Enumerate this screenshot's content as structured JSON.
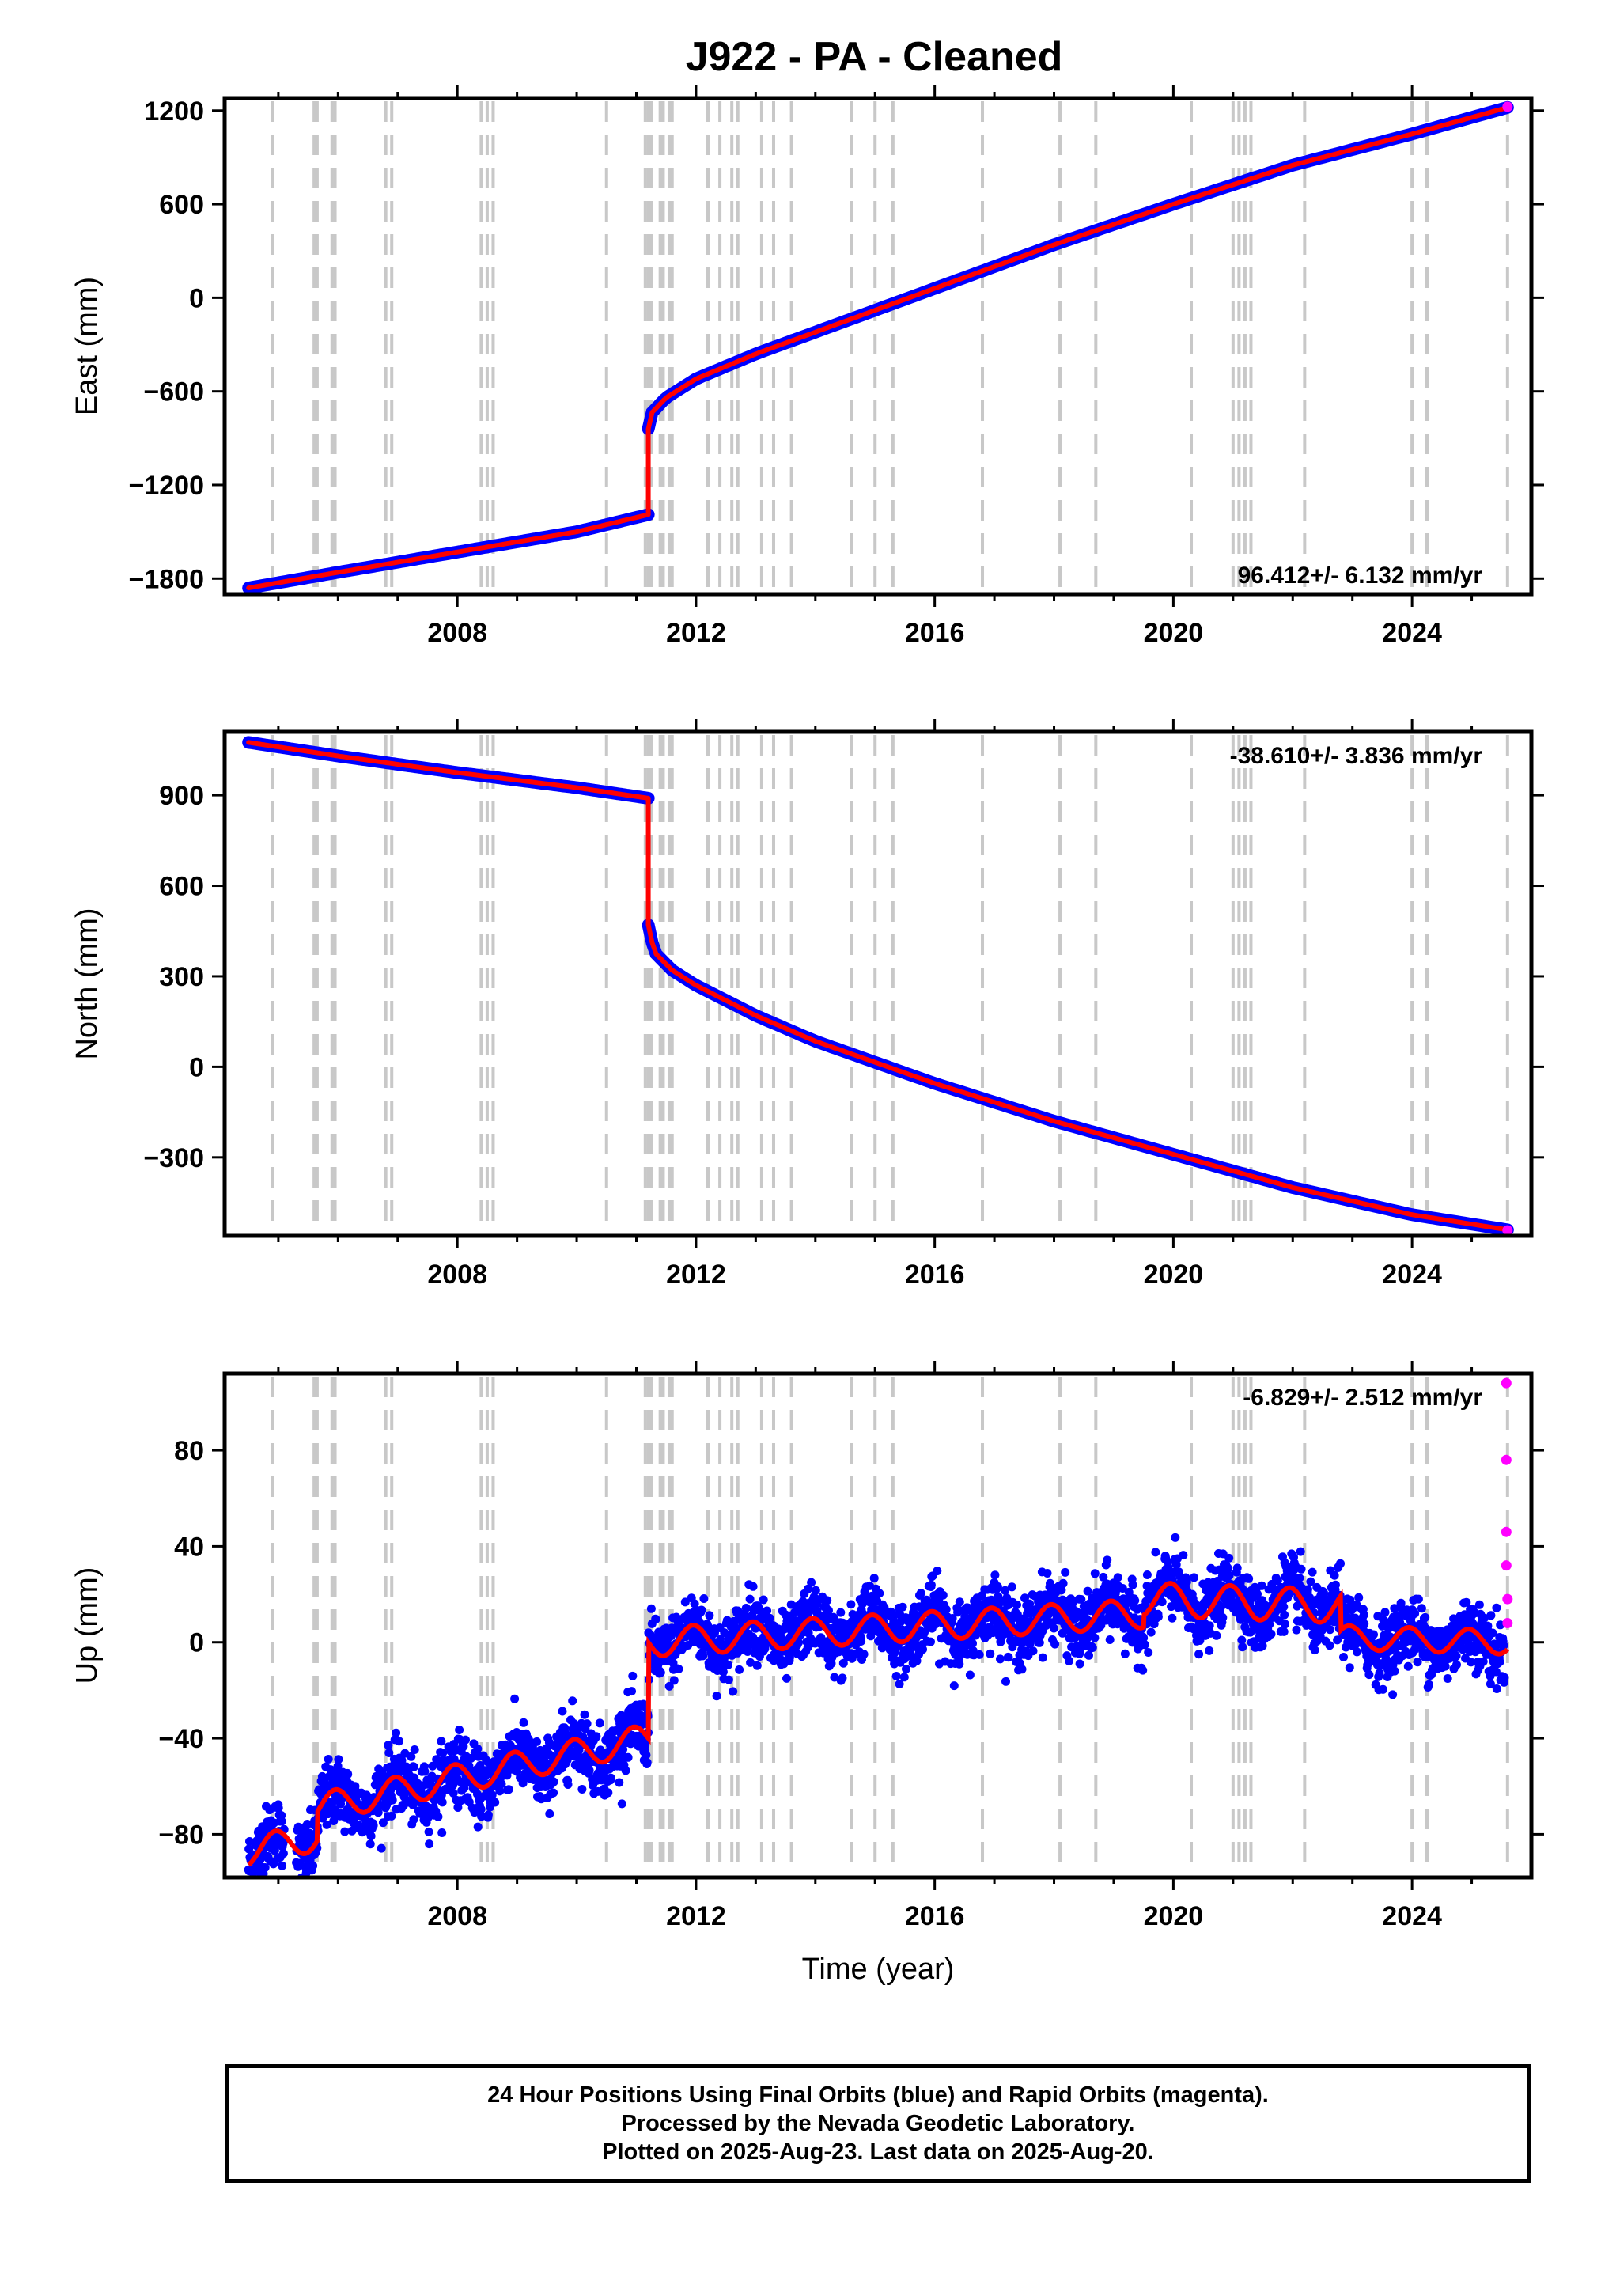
{
  "title": "J922  - PA - Cleaned",
  "footer": {
    "line1": "24 Hour Positions Using Final Orbits (blue) and Rapid Orbits (magenta).",
    "line2": "Processed by the Nevada Geodetic Laboratory.",
    "line3": "Plotted on 2025-Aug-23. Last data on 2025-Aug-20."
  },
  "colors": {
    "final_orbits": "#0000ff",
    "rapid_orbits": "#ff00ff",
    "fit": "#ff0000",
    "events": "#c8c8c8"
  },
  "event_lines": [
    2004.9,
    2005.6,
    2005.65,
    2005.9,
    2005.95,
    2006.8,
    2006.9,
    2008.4,
    2008.5,
    2008.6,
    2010.5,
    2011.15,
    2011.2,
    2011.25,
    2011.4,
    2011.45,
    2011.55,
    2011.6,
    2012.2,
    2012.4,
    2012.6,
    2012.7,
    2013.1,
    2013.3,
    2013.6,
    2014.6,
    2015.0,
    2015.3,
    2016.8,
    2018.1,
    2018.7,
    2020.3,
    2021.0,
    2021.1,
    2021.2,
    2021.3,
    2022.2,
    2024.0,
    2024.25,
    2025.6
  ],
  "chart_data": [
    {
      "type": "scatter",
      "panel": "east",
      "xlabel": "",
      "ylabel": "East (mm)",
      "xlim": [
        2004.1,
        2026.0
      ],
      "ylim": [
        -1900,
        1280
      ],
      "xticks": [
        "2008",
        "2012",
        "2016",
        "2020",
        "2024"
      ],
      "yticks": [
        "1200",
        "600",
        "0",
        "−600",
        "−1200",
        "−1800"
      ],
      "rate": "96.412+/- 6.132 mm/yr",
      "rate_position": "bottom-right",
      "series": [
        {
          "x": [
            2004.5,
            2006.0,
            2008.0,
            2010.0,
            2011.2
          ],
          "y": [
            -1860,
            -1760,
            -1630,
            -1500,
            -1390
          ]
        },
        {
          "x": [
            2011.2,
            2011.25,
            2011.5,
            2012.0,
            2013.0,
            2014.0,
            2016.0,
            2018.0,
            2020.0,
            2022.0,
            2024.0,
            2025.6
          ],
          "y": [
            -840,
            -740,
            -640,
            -520,
            -360,
            -220,
            60,
            340,
            600,
            850,
            1050,
            1220
          ]
        }
      ],
      "rapid": {
        "x": [
          2025.6
        ],
        "y": [
          1225
        ]
      }
    },
    {
      "type": "scatter",
      "panel": "north",
      "xlabel": "",
      "ylabel": "North (mm)",
      "xlim": [
        2004.1,
        2026.0
      ],
      "ylim": [
        -560,
        1110
      ],
      "xticks": [
        "2008",
        "2012",
        "2016",
        "2020",
        "2024"
      ],
      "yticks": [
        "900",
        "600",
        "300",
        "0",
        "−300"
      ],
      "rate": "-38.610+/- 3.836 mm/yr",
      "rate_position": "top-right",
      "series": [
        {
          "x": [
            2004.5,
            2006.0,
            2008.0,
            2010.0,
            2011.2
          ],
          "y": [
            1075,
            1030,
            975,
            925,
            890
          ]
        },
        {
          "x": [
            2011.2,
            2011.3,
            2011.6,
            2012.0,
            2013.0,
            2014.0,
            2016.0,
            2018.0,
            2020.0,
            2022.0,
            2024.0,
            2025.6
          ],
          "y": [
            470,
            380,
            320,
            270,
            170,
            85,
            -55,
            -180,
            -290,
            -400,
            -490,
            -540
          ]
        }
      ],
      "rapid": {
        "x": [
          2025.6
        ],
        "y": [
          -542
        ]
      }
    },
    {
      "type": "scatter",
      "panel": "up",
      "xlabel": "Time (year)",
      "ylabel": "Up (mm)",
      "xlim": [
        2004.1,
        2026.0
      ],
      "ylim": [
        -98,
        112
      ],
      "xticks": [
        "2008",
        "2012",
        "2016",
        "2020",
        "2024"
      ],
      "yticks": [
        "80",
        "40",
        "0",
        "−40",
        "−80"
      ],
      "rate": "-6.829+/- 2.512 mm/yr",
      "rate_position": "top-right",
      "fit": {
        "segments": [
          {
            "x0": 2004.5,
            "x1": 2011.2,
            "base0": -75,
            "base1": -40,
            "amp": 6,
            "phase": 0.3
          },
          {
            "x0": 2011.2,
            "x1": 2019.5,
            "base0": 0,
            "base1": 12,
            "amp": 6,
            "phase": 0.3
          },
          {
            "x0": 2019.5,
            "x1": 2022.8,
            "base0": 18,
            "base1": 15,
            "amp": 7,
            "phase": 0.3
          },
          {
            "x0": 2022.8,
            "x1": 2025.6,
            "base0": 2,
            "base1": 0,
            "amp": 5,
            "phase": 0.3
          }
        ],
        "steps": [
          {
            "x": 2005.65,
            "dy": 14
          },
          {
            "x": 2011.2,
            "dy": 38
          }
        ]
      },
      "scatter_sd": 9,
      "rapid": {
        "x": [
          2025.58,
          2025.58,
          2025.58,
          2025.58,
          2025.6,
          2025.6
        ],
        "y": [
          108,
          76,
          46,
          32,
          18,
          8
        ]
      }
    }
  ]
}
